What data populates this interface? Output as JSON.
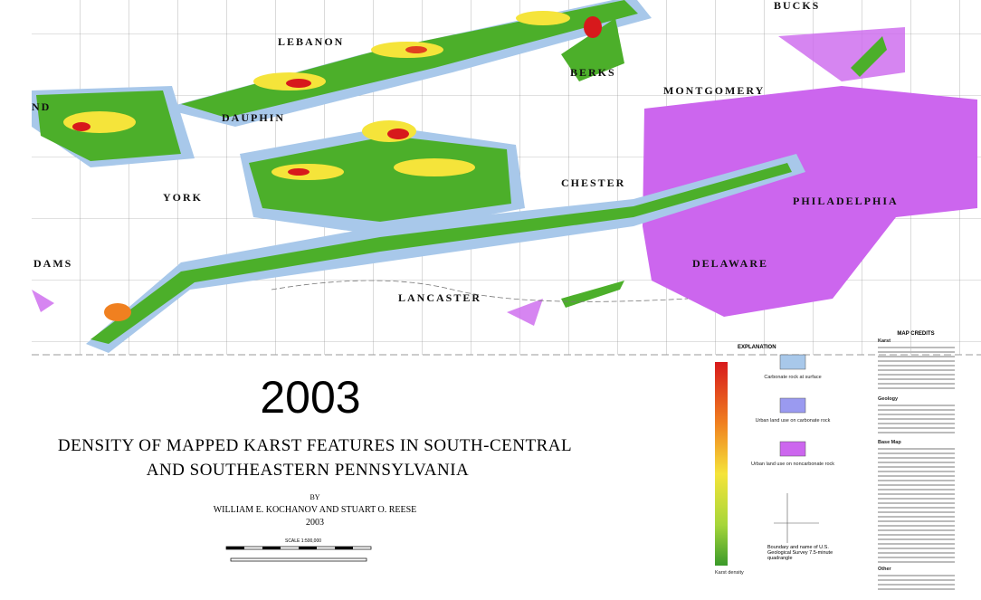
{
  "map": {
    "counties": [
      "BUCKS",
      "LEBANON",
      "BERKS",
      "MONTGOMERY",
      "ND",
      "DAUPHIN",
      "YORK",
      "CHESTER",
      "PHILADELPHIA",
      "DAMS",
      "DELAWARE",
      "LANCASTER"
    ],
    "year": "2003"
  },
  "title": {
    "lines": [
      "DENSITY OF MAPPED KARST FEATURES IN SOUTH-CENTRAL",
      "AND SOUTHEASTERN PENNSYLVANIA"
    ],
    "by": "BY",
    "authors": "WILLIAM E. KOCHANOV AND STUART O. REESE",
    "date": "2003",
    "scale": "SCALE 1:500,000"
  },
  "legend": {
    "title": "EXPLANATION",
    "items": [
      "Carbonate rock at surface",
      "Urban land use on carbonate rock",
      "Urban land use on noncarbonate rock"
    ],
    "quadrangle": "Boundary and name of U.S. Geological Survey 7.5-minute quadrangle",
    "colorbar": "Karst density"
  },
  "credits": {
    "title": "MAP CREDITS",
    "sections": [
      "Karst",
      "Geology",
      "Base Map",
      "Other"
    ]
  }
}
